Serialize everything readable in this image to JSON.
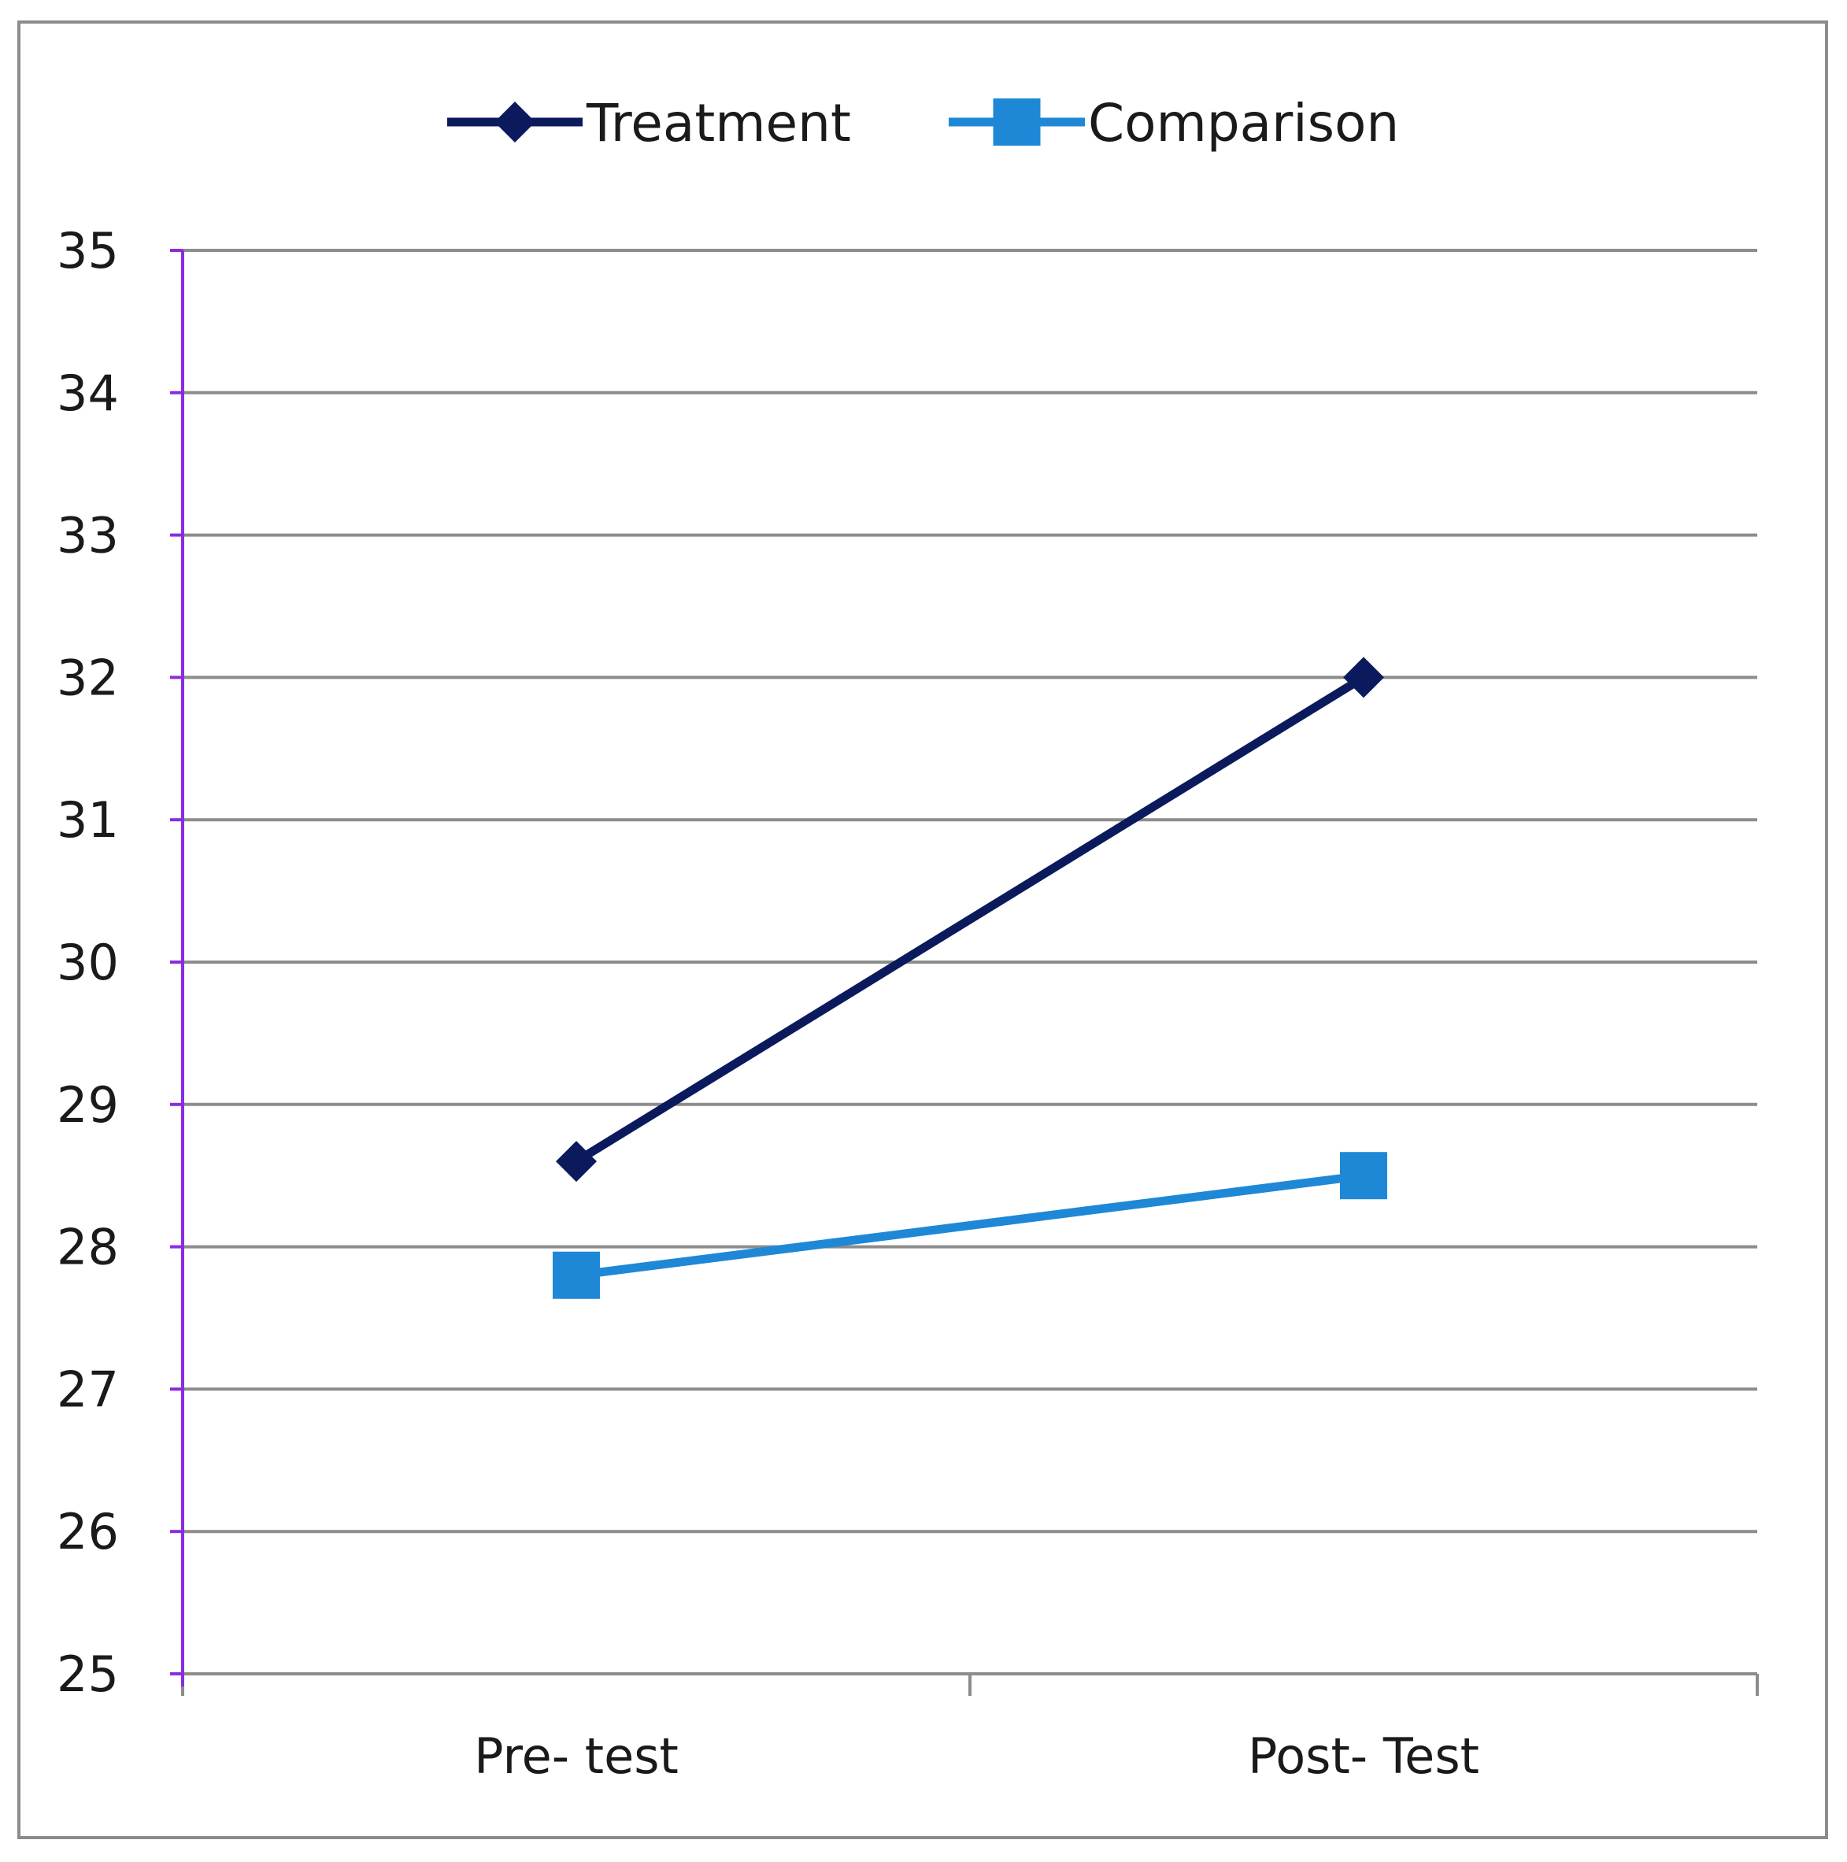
{
  "chart_data": {
    "type": "line",
    "categories": [
      "Pre- test",
      "Post- Test"
    ],
    "series": [
      {
        "name": "Treatment",
        "values": [
          28.6,
          32.0
        ],
        "color": "#0b1a5c",
        "marker": "diamond"
      },
      {
        "name": "Comparison",
        "values": [
          27.8,
          28.5
        ],
        "color": "#1e88d6",
        "marker": "square"
      }
    ],
    "ylim": [
      25,
      35
    ],
    "yticks": [
      25,
      26,
      27,
      28,
      29,
      30,
      31,
      32,
      33,
      34,
      35
    ],
    "grid": true,
    "legend": "top-center",
    "axis_color": "#8a2be2",
    "grid_color": "#8c8c8c"
  }
}
